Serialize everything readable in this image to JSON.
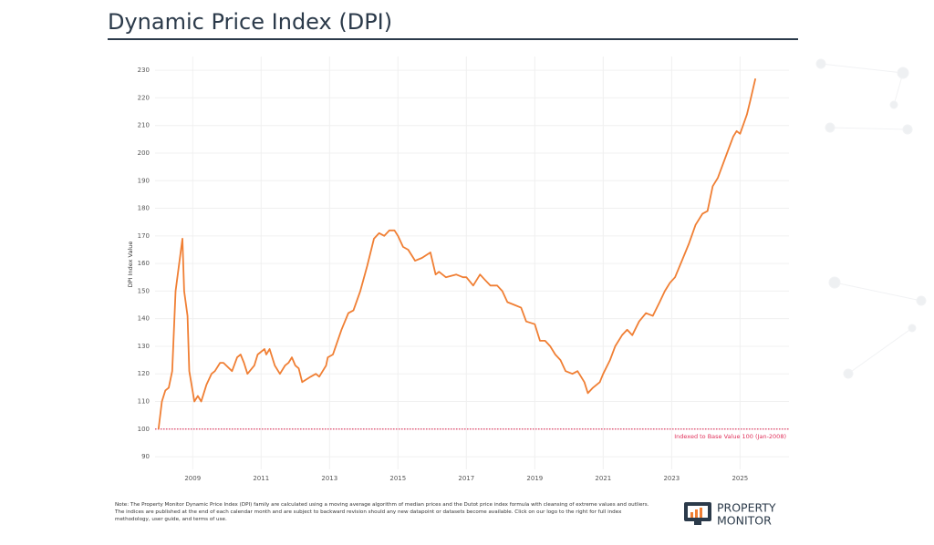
{
  "chart_data": {
    "type": "line",
    "title": "Dynamic Price Index (DPI)",
    "y_label": "DPI Index Value",
    "xlim": [
      2007.9,
      2026.43
    ],
    "xticks": [
      2009,
      2011,
      2013,
      2015,
      2017,
      2019,
      2021,
      2023,
      2025
    ],
    "ylim": [
      85.4,
      235
    ],
    "yticks": [
      90,
      100,
      110,
      120,
      130,
      140,
      150,
      160,
      170,
      180,
      190,
      200,
      210,
      220,
      230
    ],
    "grid": true,
    "reference_line": {
      "value": 100,
      "label": "Indexed to Base Value 100 (Jan-2008)",
      "color": "#e0305a"
    },
    "series": [
      {
        "name": "DPI",
        "color": "#f07f34",
        "x": [
          2008.0,
          2008.1,
          2008.2,
          2008.3,
          2008.4,
          2008.5,
          2008.7,
          2008.75,
          2008.85,
          2008.9,
          2009.05,
          2009.15,
          2009.25,
          2009.4,
          2009.55,
          2009.65,
          2009.8,
          2009.9,
          2010.15,
          2010.3,
          2010.4,
          2010.5,
          2010.6,
          2010.8,
          2010.9,
          2011.1,
          2011.15,
          2011.25,
          2011.4,
          2011.55,
          2011.7,
          2011.8,
          2011.9,
          2012.0,
          2012.1,
          2012.2,
          2012.45,
          2012.6,
          2012.7,
          2012.9,
          2012.95,
          2013.1,
          2013.35,
          2013.55,
          2013.7,
          2013.9,
          2014.1,
          2014.3,
          2014.45,
          2014.6,
          2014.75,
          2014.9,
          2015.0,
          2015.15,
          2015.3,
          2015.4,
          2015.5,
          2015.7,
          2015.95,
          2016.1,
          2016.2,
          2016.4,
          2016.7,
          2016.9,
          2017.0,
          2017.2,
          2017.4,
          2017.55,
          2017.7,
          2017.9,
          2018.05,
          2018.2,
          2018.4,
          2018.6,
          2018.75,
          2019.0,
          2019.15,
          2019.3,
          2019.45,
          2019.6,
          2019.75,
          2019.9,
          2020.1,
          2020.25,
          2020.45,
          2020.55,
          2020.7,
          2020.9,
          2021.0,
          2021.2,
          2021.35,
          2021.55,
          2021.7,
          2021.85,
          2022.05,
          2022.25,
          2022.45,
          2022.65,
          2022.8,
          2022.95,
          2023.1,
          2023.3,
          2023.5,
          2023.7,
          2023.9,
          2024.05,
          2024.2,
          2024.35,
          2024.5,
          2024.65,
          2024.8,
          2024.9,
          2025.0,
          2025.2,
          2025.3,
          2025.45
        ],
        "values": [
          100,
          110,
          114,
          115,
          121,
          150,
          169,
          150,
          141,
          121,
          110,
          112,
          110,
          116,
          120,
          121,
          124,
          124,
          121,
          126,
          127,
          124,
          120,
          123,
          127,
          129,
          127,
          129,
          123,
          120,
          123,
          124,
          126,
          123,
          122,
          117,
          119,
          120,
          119,
          123,
          126,
          127,
          136,
          142,
          143,
          150,
          159,
          169,
          171,
          170,
          172,
          172,
          170,
          166,
          165,
          163,
          161,
          162,
          164,
          156,
          157,
          155,
          156,
          155,
          155,
          152,
          156,
          154,
          152,
          152,
          150,
          146,
          145,
          144,
          139,
          138,
          132,
          132,
          130,
          127,
          125,
          121,
          120,
          121,
          117,
          113,
          115,
          117,
          120,
          125,
          130,
          134,
          136,
          134,
          139,
          142,
          141,
          146,
          150,
          153,
          155,
          161,
          167,
          174,
          178,
          179,
          188,
          191,
          196,
          201,
          206,
          208,
          207,
          214,
          219,
          227
        ]
      }
    ]
  },
  "note": "Note: The Property Monitor Dynamic Price Index (DPI) family are calculated using a moving average algorithm of median prices and the Dutot price index formula with cleansing of extreme values and outliers. The indices are published at the end of each calendar month and are subject to backward revision should any new datapoint or datasets become available.  Click on our logo to the right for full index methodology, user guide, and terms of use.",
  "logo": [
    "PROPERTY",
    "MONITOR"
  ]
}
